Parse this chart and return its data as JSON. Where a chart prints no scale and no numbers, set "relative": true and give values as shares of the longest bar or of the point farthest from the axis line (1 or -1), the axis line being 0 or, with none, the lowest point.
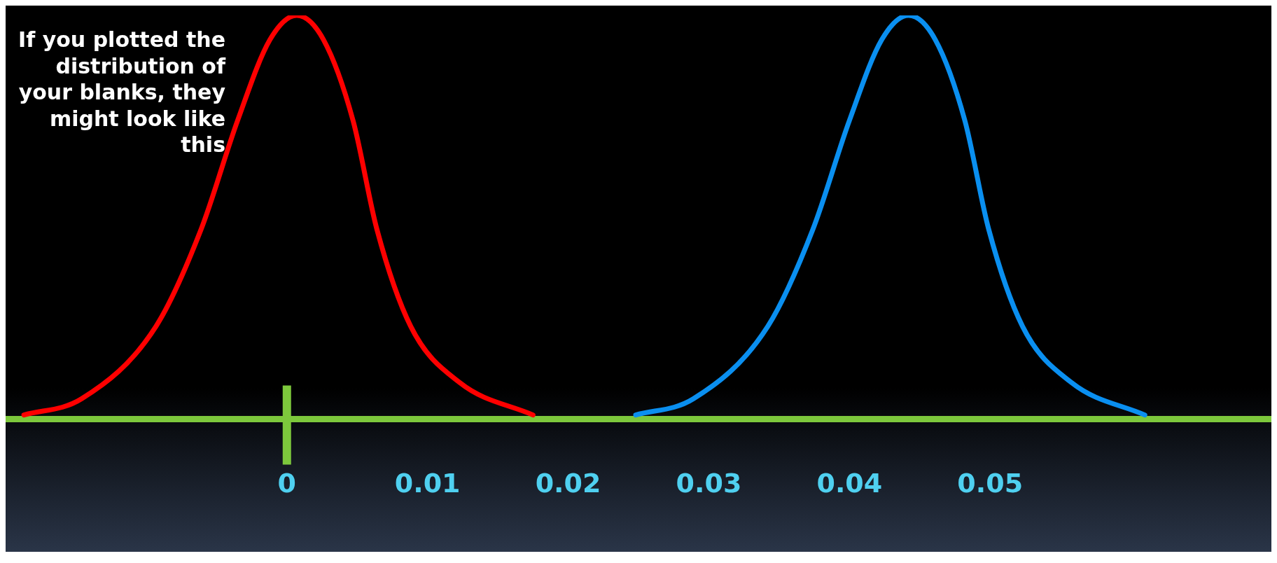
{
  "chart_data": {
    "type": "line",
    "relative": true,
    "annotations": [
      "If you plotted the distribution of your blanks, they might look like this"
    ],
    "xlim": [
      -0.02,
      0.07
    ],
    "xticks": [
      0,
      0.01,
      0.02,
      0.03,
      0.04,
      0.05
    ],
    "grid": false,
    "legend": false,
    "marker": "none",
    "line_style": "solid",
    "ref_lines": [
      {
        "axis": "x",
        "value": 0,
        "color": "#7dc83c"
      }
    ],
    "series": [
      {
        "color": "#ff0000",
        "x": [
          -0.0187,
          -0.0146,
          -0.0093,
          -0.0061,
          -0.0035,
          -0.0012,
          0.0007,
          0.0026,
          0.0047,
          0.0064,
          0.0088,
          0.0123,
          0.0175
        ],
        "values": [
          0.01,
          0.05,
          0.23,
          0.47,
          0.74,
          0.94,
          1,
          0.94,
          0.74,
          0.47,
          0.23,
          0.09,
          0.01
        ]
      },
      {
        "color": "#0a8ff0",
        "x": [
          0.0248,
          0.0289,
          0.0342,
          0.0374,
          0.04,
          0.0423,
          0.0442,
          0.0461,
          0.0482,
          0.0499,
          0.0523,
          0.0558,
          0.061
        ],
        "values": [
          0.01,
          0.05,
          0.23,
          0.47,
          0.74,
          0.94,
          1,
          0.94,
          0.74,
          0.47,
          0.23,
          0.09,
          0.01
        ]
      }
    ]
  }
}
